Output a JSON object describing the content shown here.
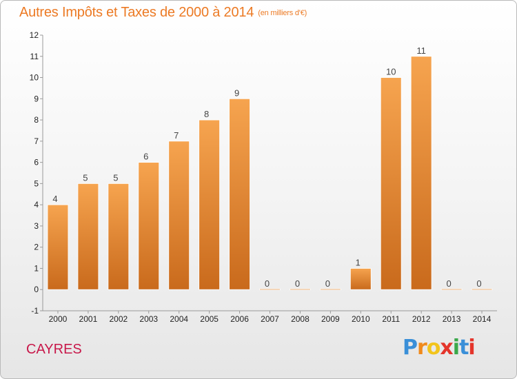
{
  "chart_data": {
    "type": "bar",
    "title": "Autres Impôts et Taxes de 2000 à 2014",
    "subtitle": "(en milliers d'€)",
    "categories": [
      "2000",
      "2001",
      "2002",
      "2003",
      "2004",
      "2005",
      "2006",
      "2007",
      "2008",
      "2009",
      "2010",
      "2011",
      "2012",
      "2013",
      "2014"
    ],
    "values": [
      4,
      5,
      5,
      6,
      7,
      8,
      9,
      0,
      0,
      0,
      1,
      10,
      11,
      0,
      0
    ],
    "ylim": [
      -1,
      12
    ],
    "yticks": [
      "-1",
      "0",
      "1",
      "2",
      "3",
      "4",
      "5",
      "6",
      "7",
      "8",
      "9",
      "10",
      "11",
      "12"
    ],
    "grid": false,
    "bar_color_top": "#f6a44f",
    "bar_color_bottom": "#c96a1c"
  },
  "location": "CAYRES",
  "brand": {
    "letters": [
      "P",
      "r",
      "o",
      "x",
      "i",
      "t",
      "i"
    ],
    "colors": [
      "#3a8fd8",
      "#f08a1c",
      "#f2c41c",
      "#e4352b",
      "#3aa84a",
      "#3a8fd8",
      "#e4352b"
    ]
  }
}
